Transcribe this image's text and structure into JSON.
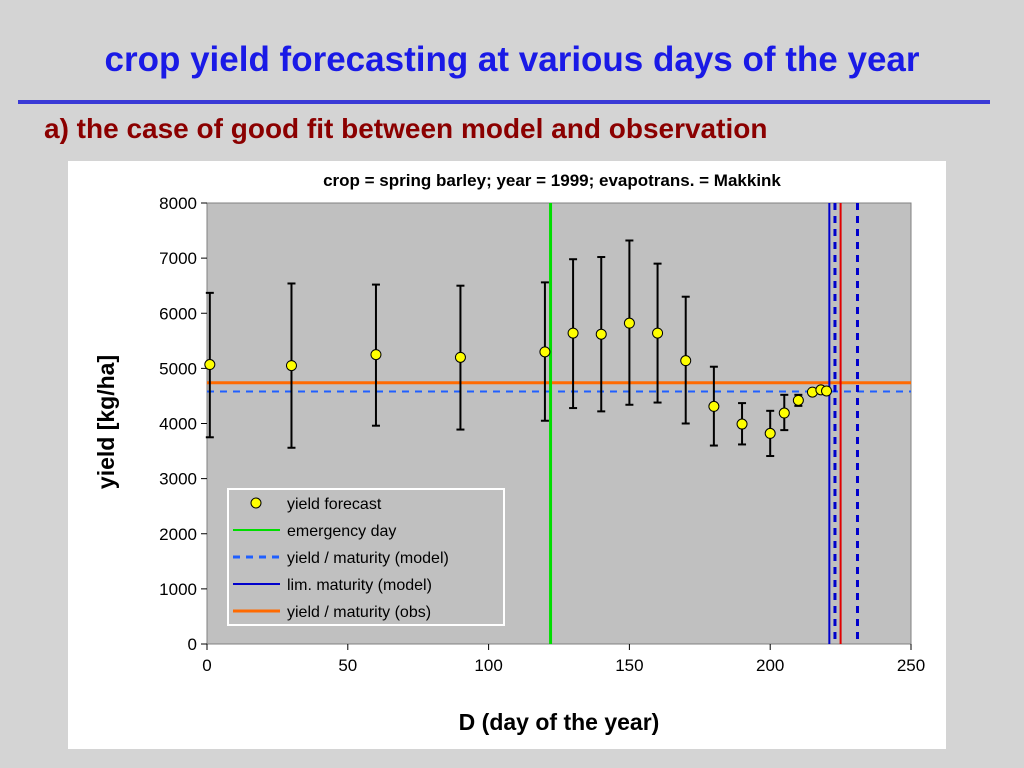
{
  "slide": {
    "title": "crop yield forecasting at various days of the year",
    "subtitle": "a) the case of good fit between model and observation"
  },
  "colors": {
    "title": "#1a1ae6",
    "subtitle": "#8b0000",
    "plot_background": "#c0c0c0",
    "forecast_marker": "#ffff00",
    "emergency_day": "#00dd00",
    "model_yield": "#1f5fff",
    "model_maturity": "#0000cc",
    "observed_yield": "#ff6a00",
    "observed_maturity": "#e00000"
  },
  "chart_data": {
    "type": "scatter",
    "title": "crop = spring barley; year = 1999; evapotrans. = Makkink",
    "xlabel": "D  (day of the year)",
    "ylabel": "yield  [kg/ha]",
    "xlim": [
      0,
      250
    ],
    "ylim": [
      0,
      8000
    ],
    "xticks": [
      0,
      50,
      100,
      150,
      200,
      250
    ],
    "yticks": [
      0,
      1000,
      2000,
      3000,
      4000,
      5000,
      6000,
      7000,
      8000
    ],
    "grid": false,
    "legend_position": "lower-left",
    "series": [
      {
        "name": "yield forecast",
        "kind": "points_with_error_bars",
        "points": [
          {
            "x": 1,
            "y": 5070,
            "low": 3750,
            "high": 6370
          },
          {
            "x": 30,
            "y": 5050,
            "low": 3560,
            "high": 6540
          },
          {
            "x": 60,
            "y": 5250,
            "low": 3960,
            "high": 6520
          },
          {
            "x": 90,
            "y": 5200,
            "low": 3890,
            "high": 6500
          },
          {
            "x": 120,
            "y": 5300,
            "low": 4050,
            "high": 6560
          },
          {
            "x": 130,
            "y": 5640,
            "low": 4280,
            "high": 6980
          },
          {
            "x": 140,
            "y": 5620,
            "low": 4220,
            "high": 7020
          },
          {
            "x": 150,
            "y": 5820,
            "low": 4340,
            "high": 7320
          },
          {
            "x": 160,
            "y": 5640,
            "low": 4380,
            "high": 6900
          },
          {
            "x": 170,
            "y": 5140,
            "low": 4000,
            "high": 6300
          },
          {
            "x": 180,
            "y": 4310,
            "low": 3600,
            "high": 5030
          },
          {
            "x": 190,
            "y": 3990,
            "low": 3620,
            "high": 4370
          },
          {
            "x": 200,
            "y": 3820,
            "low": 3410,
            "high": 4230
          },
          {
            "x": 205,
            "y": 4190,
            "low": 3880,
            "high": 4520
          },
          {
            "x": 210,
            "y": 4420,
            "low": 4320,
            "high": 4520
          },
          {
            "x": 215,
            "y": 4570
          },
          {
            "x": 218,
            "y": 4610
          },
          {
            "x": 220,
            "y": 4590
          }
        ]
      },
      {
        "name": "emergency day",
        "kind": "vline",
        "x": 122
      },
      {
        "name": "yield / maturity (model)",
        "kind": "dashed_cross",
        "y": 4580,
        "x": [
          223,
          231
        ]
      },
      {
        "name": "lim. maturity (model)",
        "kind": "vline",
        "x": 221
      },
      {
        "name": "yield / maturity (obs)",
        "kind": "cross",
        "y": 4740,
        "x": 225
      }
    ]
  }
}
